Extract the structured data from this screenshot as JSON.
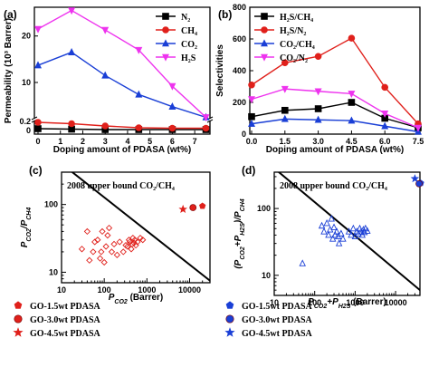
{
  "chart_data": [
    {
      "panel": "(a)",
      "type": "line",
      "xlabel": "Doping amount of PDASA (wt%)",
      "ylabel": "Permeability (10³ Barrer)",
      "xticks": [
        "0",
        "1",
        "2",
        "3",
        "4",
        "5",
        "6",
        "7"
      ],
      "yticks_lower": [
        "0",
        "0.2"
      ],
      "yticks_upper": [
        "10",
        "20"
      ],
      "x": [
        0,
        1.5,
        3,
        4.5,
        6,
        7.5
      ],
      "series": [
        {
          "name": "N₂",
          "color": "#000000",
          "marker": "square",
          "values": [
            0.04,
            0.03,
            0.02,
            0.02,
            0.02,
            0.02
          ]
        },
        {
          "name": "CH₄",
          "color": "#e0201b",
          "marker": "circle",
          "values": [
            0.18,
            0.15,
            0.1,
            0.06,
            0.05,
            0.05
          ]
        },
        {
          "name": "CO₂",
          "color": "#1a3fd6",
          "marker": "triangle-up",
          "values": [
            13.7,
            16.5,
            11.5,
            7.4,
            4.8,
            2.5
          ]
        },
        {
          "name": "H₂S",
          "color": "#ee33ee",
          "marker": "triangle-down",
          "values": [
            21.5,
            25.5,
            21.3,
            17.0,
            9.2,
            2.5
          ]
        }
      ]
    },
    {
      "panel": "(b)",
      "type": "line",
      "xlabel": "Doping amount of PDASA (wt%)",
      "ylabel": "Selectivities",
      "xticks": [
        "0.0",
        "1.5",
        "3.0",
        "4.5",
        "6.0",
        "7.5"
      ],
      "yticks": [
        "0",
        "200",
        "400",
        "600",
        "800"
      ],
      "ylim": [
        0,
        800
      ],
      "x": [
        0,
        1.5,
        3,
        4.5,
        6,
        7.5
      ],
      "series": [
        {
          "name": "H₂S/CH₄",
          "color": "#000000",
          "marker": "square",
          "values": [
            110,
            150,
            160,
            200,
            100,
            40
          ]
        },
        {
          "name": "H₂S/N₂",
          "color": "#e0201b",
          "marker": "circle",
          "values": [
            310,
            450,
            490,
            605,
            295,
            65
          ]
        },
        {
          "name": "CO₂/CH₄",
          "color": "#1a3fd6",
          "marker": "triangle-up",
          "values": [
            65,
            95,
            90,
            85,
            50,
            15
          ]
        },
        {
          "name": "CO₂/N₂",
          "color": "#ee33ee",
          "marker": "triangle-down",
          "values": [
            220,
            285,
            270,
            255,
            130,
            40
          ]
        }
      ]
    },
    {
      "panel": "(c)",
      "type": "scatter",
      "xlabel": "P",
      "xlabel_sub": "CO2",
      "xlabel_unit": " (Barrer)",
      "ylabel_a": "P",
      "ylabel_a_sub": "CO2",
      "ylabel_b": "/P",
      "ylabel_b_sub": "CH4",
      "xscale": "log",
      "yscale": "log",
      "xlim": [
        10,
        30000
      ],
      "ylim": [
        7,
        300
      ],
      "xticks": [
        "10",
        "100",
        "1000",
        "10000"
      ],
      "yticks": [
        "10",
        "100"
      ],
      "annotation": "2008 upper bound CO₂/CH₄",
      "upper_bound": [
        [
          10,
          400
        ],
        [
          30000,
          7.5
        ]
      ],
      "reference_points": [
        [
          30,
          22
        ],
        [
          40,
          40
        ],
        [
          45,
          15
        ],
        [
          55,
          20
        ],
        [
          60,
          28
        ],
        [
          70,
          30
        ],
        [
          80,
          16
        ],
        [
          85,
          20
        ],
        [
          90,
          40
        ],
        [
          100,
          14
        ],
        [
          110,
          24
        ],
        [
          120,
          35
        ],
        [
          130,
          45
        ],
        [
          150,
          20
        ],
        [
          170,
          26
        ],
        [
          200,
          18
        ],
        [
          230,
          28
        ],
        [
          280,
          20
        ],
        [
          320,
          25
        ],
        [
          350,
          24
        ],
        [
          380,
          30
        ],
        [
          400,
          28
        ],
        [
          430,
          22
        ],
        [
          450,
          26
        ],
        [
          470,
          32
        ],
        [
          500,
          27
        ],
        [
          520,
          30
        ],
        [
          550,
          25
        ],
        [
          600,
          28
        ],
        [
          700,
          32
        ],
        [
          800,
          30
        ]
      ],
      "highlight_points": [
        {
          "label": "GO-1.5wt PDASA",
          "marker": "pentagon",
          "x": 20000,
          "y": 95
        },
        {
          "label": "GO-3.0wt PDASA",
          "marker": "ball",
          "x": 12000,
          "y": 90
        },
        {
          "label": "GO-4.5wt PDASA",
          "marker": "star",
          "x": 7000,
          "y": 85
        }
      ],
      "color": "#e0201b"
    },
    {
      "panel": "(d)",
      "type": "scatter",
      "xlabel_a": "P",
      "xlabel_a_sub": "CO2",
      "xlabel_b": "+P",
      "xlabel_b_sub": "H2S",
      "xlabel_unit": " (Barrer)",
      "ylabel_a": "(P",
      "ylabel_a_sub": "CO2",
      "ylabel_b": "+P",
      "ylabel_b_sub": "H2S",
      "ylabel_c": ")/P",
      "ylabel_c_sub": "CH4",
      "xscale": "log",
      "yscale": "log",
      "xlim": [
        10,
        40000
      ],
      "ylim": [
        5,
        350
      ],
      "xticks": [
        "10",
        "100",
        "1000",
        "10000"
      ],
      "yticks": [
        "10",
        "100"
      ],
      "annotation": "2008 upper bound CO₂/CH₄",
      "upper_bound": [
        [
          10,
          400
        ],
        [
          40000,
          6
        ]
      ],
      "reference_points": [
        [
          50,
          15
        ],
        [
          150,
          55
        ],
        [
          170,
          45
        ],
        [
          200,
          60
        ],
        [
          220,
          40
        ],
        [
          240,
          48
        ],
        [
          260,
          70
        ],
        [
          280,
          35
        ],
        [
          300,
          52
        ],
        [
          320,
          40
        ],
        [
          350,
          45
        ],
        [
          380,
          38
        ],
        [
          400,
          30
        ],
        [
          450,
          42
        ],
        [
          500,
          35
        ],
        [
          700,
          45
        ],
        [
          800,
          40
        ],
        [
          900,
          50
        ],
        [
          1000,
          38
        ],
        [
          1100,
          45
        ],
        [
          1200,
          42
        ],
        [
          1300,
          50
        ],
        [
          1400,
          45
        ],
        [
          1500,
          40
        ],
        [
          1600,
          48
        ],
        [
          1700,
          44
        ],
        [
          1800,
          50
        ],
        [
          2000,
          46
        ]
      ],
      "highlight_points": [
        {
          "label": "GO-1.5wt PDASA",
          "marker": "pentagon",
          "x": 42000,
          "y": 240
        },
        {
          "label": "GO-3.0wt PDASA",
          "marker": "ball",
          "x": 38000,
          "y": 235
        },
        {
          "label": "GO-4.5wt PDASA",
          "marker": "star",
          "x": 30000,
          "y": 280
        }
      ],
      "color": "#1a3fd6"
    }
  ]
}
